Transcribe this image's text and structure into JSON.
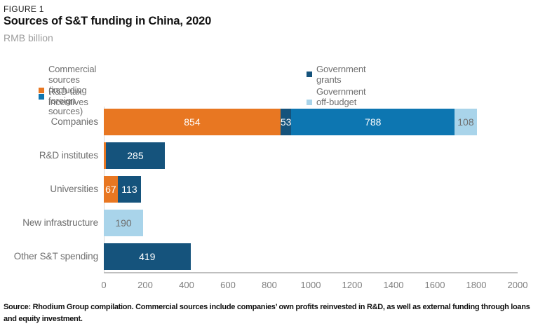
{
  "figure": {
    "label": "FIGURE 1",
    "title": "Sources of S&T funding in China, 2020",
    "subtitle": "RMB billion",
    "source_note": "Source: Rhodium Group compilation. Commercial sources include companies’ own profits reinvested in R&D, as well as external funding through loans and equity investment."
  },
  "legend": [
    {
      "label": "Commercial sources (including foreign sources)",
      "color": "#e87722"
    },
    {
      "label": "Government grants",
      "color": "#15537c"
    },
    {
      "label": "R&D tax incentives",
      "color": "#0d76b1"
    },
    {
      "label": "Government off-budget financing",
      "color": "#a9d4ea"
    }
  ],
  "chart_data": {
    "type": "bar",
    "orientation": "horizontal",
    "stacked": true,
    "title": "Sources of S&T funding in China, 2020",
    "value_unit": "RMB billion",
    "xlim": [
      0,
      2000
    ],
    "xticks": [
      0,
      200,
      400,
      600,
      800,
      1000,
      1200,
      1400,
      1600,
      1800,
      2000
    ],
    "grid": false,
    "legend_position": "top",
    "categories": [
      "Companies",
      "R&D institutes",
      "Universities",
      "New infrastructure",
      "Other S&T spending"
    ],
    "series": [
      {
        "name": "Commercial sources (including foreign sources)",
        "color": "#e87722",
        "label_color": "#ffffff",
        "values": [
          854,
          10,
          67,
          0,
          0
        ]
      },
      {
        "name": "Government grants",
        "color": "#15537c",
        "label_color": "#ffffff",
        "values": [
          53,
          285,
          113,
          0,
          419
        ]
      },
      {
        "name": "R&D tax incentives",
        "color": "#0d76b1",
        "label_color": "#ffffff",
        "values": [
          788,
          0,
          0,
          0,
          0
        ]
      },
      {
        "name": "Government off-budget financing",
        "color": "#a9d4ea",
        "label_color": "#6f6f6f",
        "values": [
          108,
          0,
          0,
          190,
          0
        ]
      }
    ],
    "rows": [
      {
        "category": "Companies",
        "segments": [
          {
            "series": 0,
            "value": 854,
            "label": "854"
          },
          {
            "series": 1,
            "value": 53,
            "label": "53"
          },
          {
            "series": 2,
            "value": 788,
            "label": "788"
          },
          {
            "series": 3,
            "value": 108,
            "label": "108"
          }
        ]
      },
      {
        "category": "R&D institutes",
        "segments": [
          {
            "series": 0,
            "value": 10,
            "label": ""
          },
          {
            "series": 1,
            "value": 285,
            "label": "285"
          }
        ]
      },
      {
        "category": "Universities",
        "segments": [
          {
            "series": 0,
            "value": 67,
            "label": "67"
          },
          {
            "series": 1,
            "value": 113,
            "label": "113"
          }
        ]
      },
      {
        "category": "New infrastructure",
        "segments": [
          {
            "series": 3,
            "value": 190,
            "label": "190"
          }
        ]
      },
      {
        "category": "Other S&T spending",
        "segments": [
          {
            "series": 1,
            "value": 419,
            "label": "419"
          }
        ]
      }
    ]
  }
}
